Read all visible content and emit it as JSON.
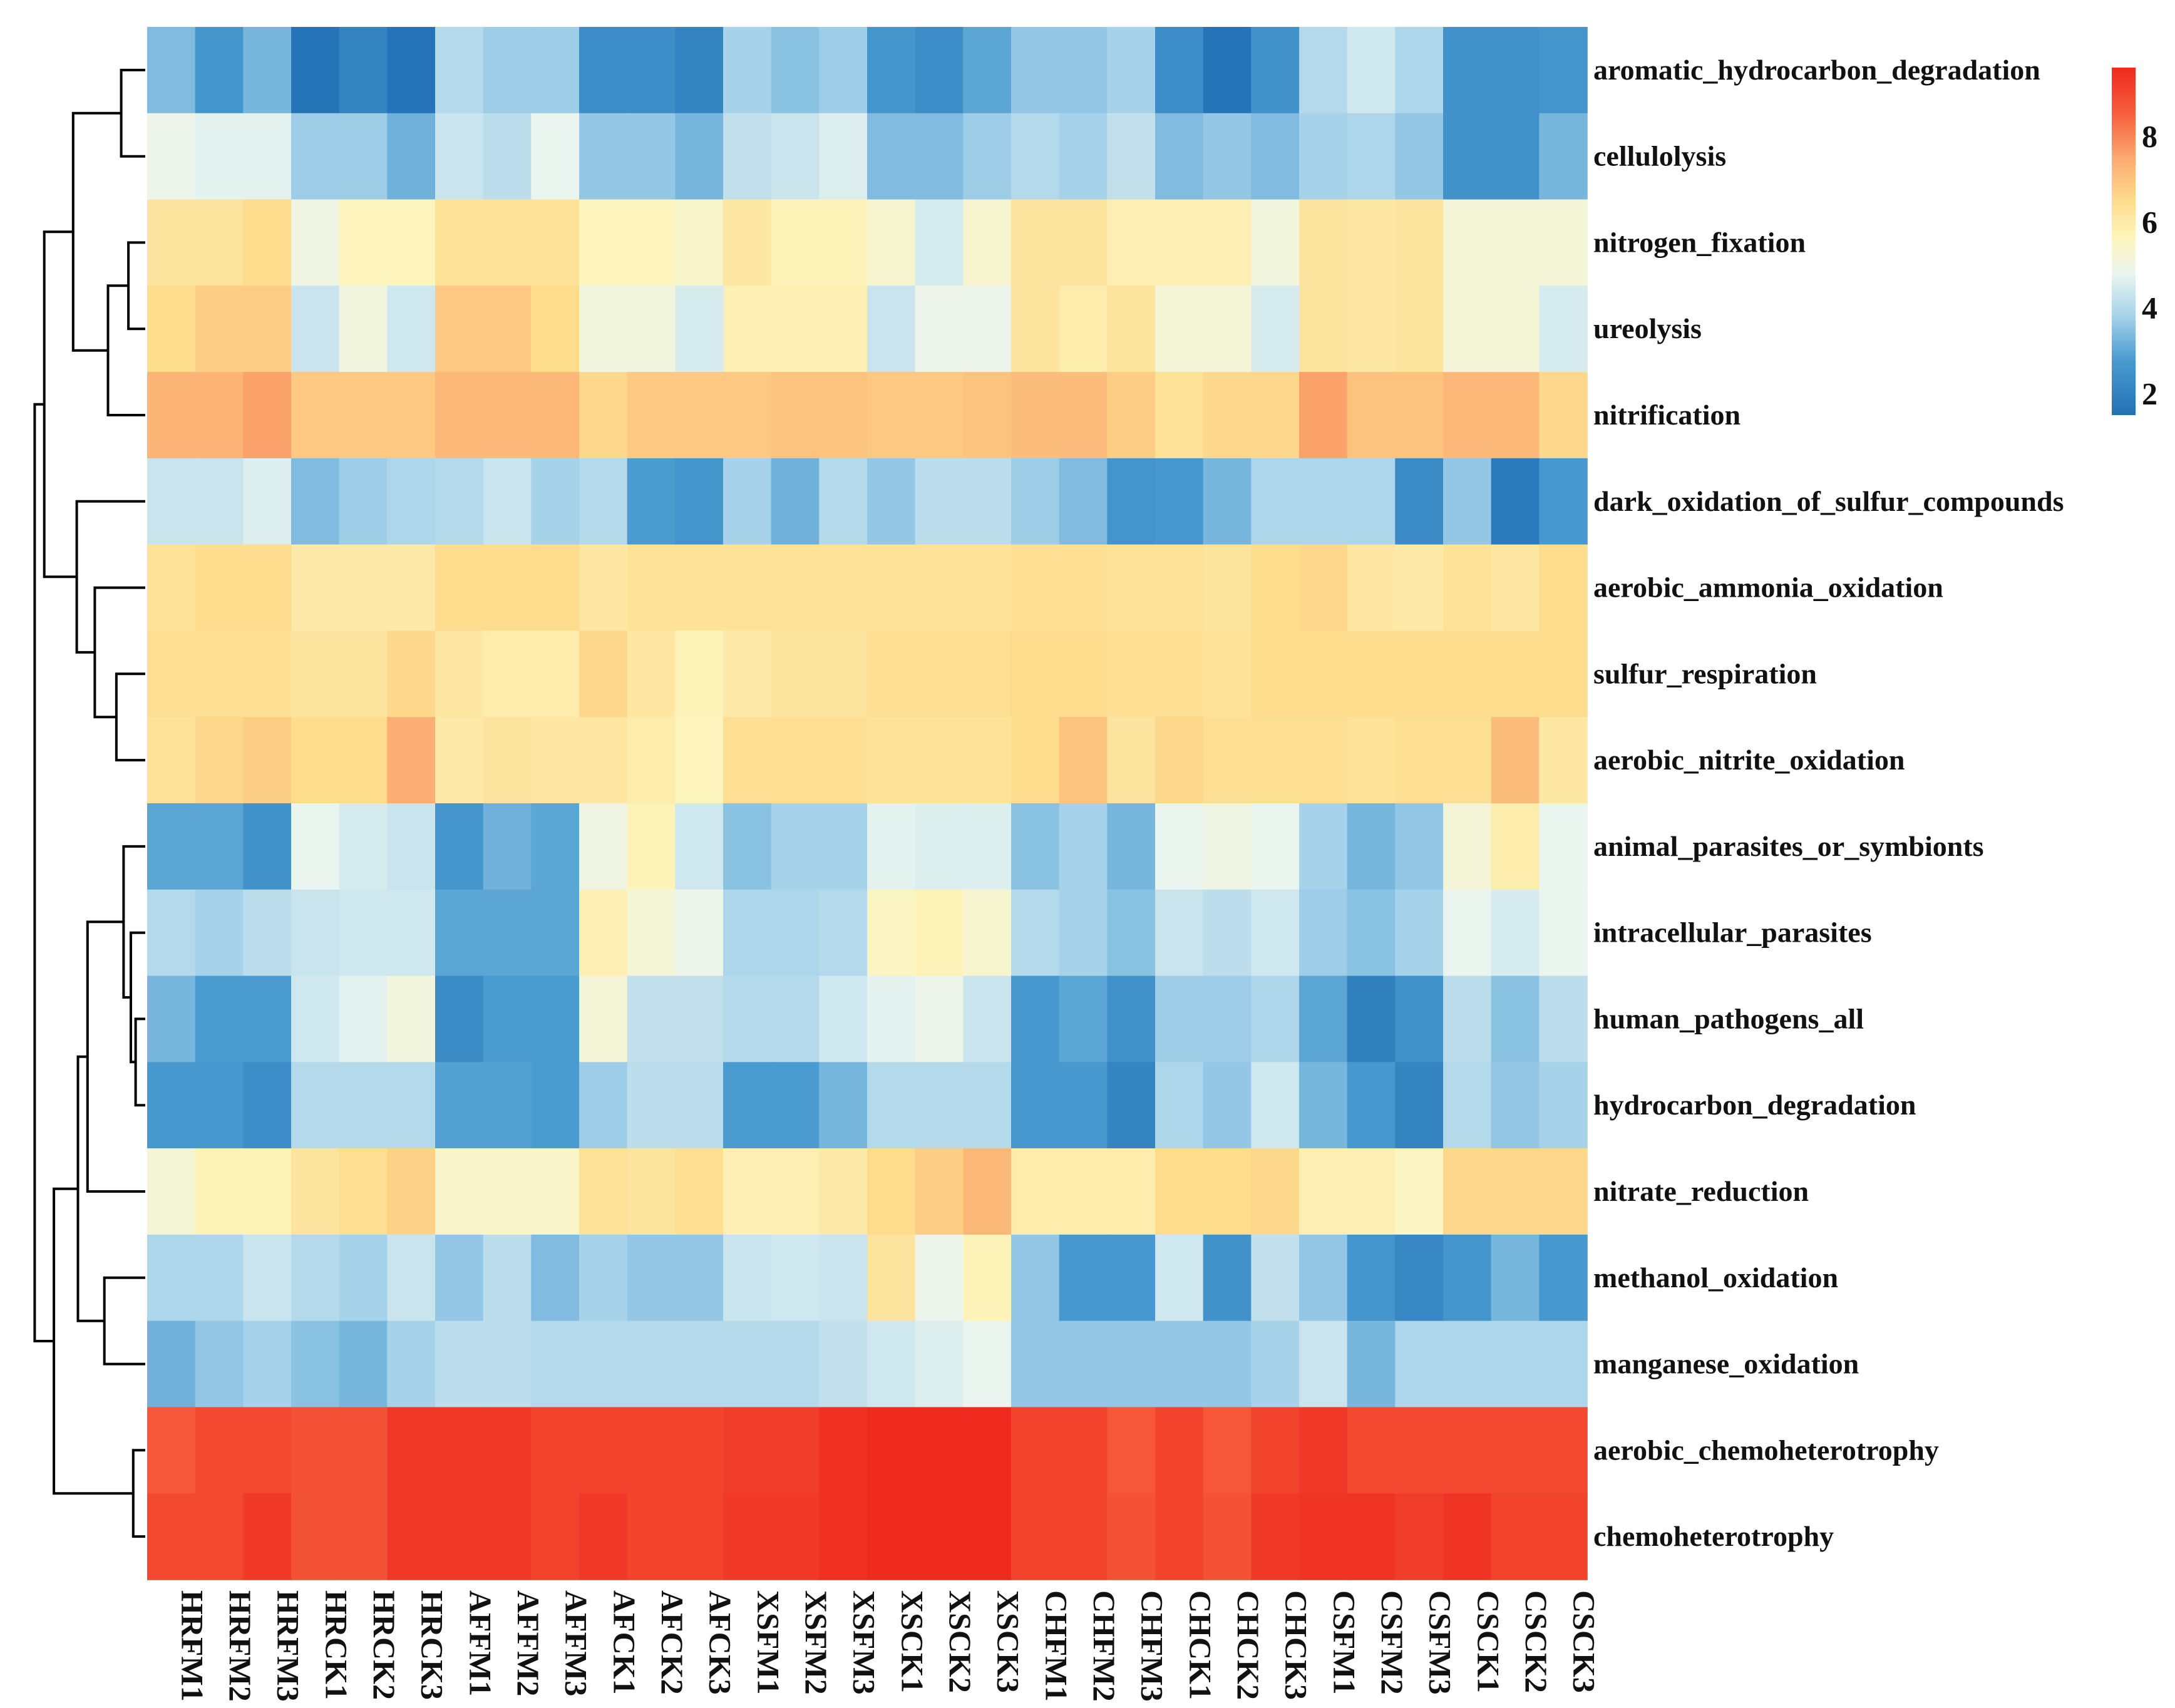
{
  "chart_data": {
    "type": "heatmap",
    "title": "",
    "xlabel": "",
    "ylabel": "",
    "columns": [
      "HRFM1",
      "HRFM2",
      "HRFM3",
      "HRCK1",
      "HRCK2",
      "HRCK3",
      "AFFM1",
      "AFFM2",
      "AFFM3",
      "AFCK1",
      "AFCK2",
      "AFCK3",
      "XSFM1",
      "XSFM2",
      "XSFM3",
      "XSCK1",
      "XSCK2",
      "XSCK3",
      "CHFM1",
      "CHFM2",
      "CHFM3",
      "CHCK1",
      "CHCK2",
      "CHCK3",
      "CSFM1",
      "CSFM2",
      "CSFM3",
      "CSCK1",
      "CSCK2",
      "CSCK3"
    ],
    "rows": [
      "aromatic_hydrocarbon_degradation",
      "cellulolysis",
      "nitrogen_fixation",
      "ureolysis",
      "nitrification",
      "dark_oxidation_of_sulfur_compounds",
      "aerobic_ammonia_oxidation",
      "sulfur_respiration",
      "aerobic_nitrite_oxidation",
      "animal_parasites_or_symbionts",
      "intracellular_parasites",
      "human_pathogens_all",
      "hydrocarbon_degradation",
      "nitrate_reduction",
      "methanol_oxidation",
      "manganese_oxidation",
      "aerobic_chemoheterotrophy",
      "chemoheterotrophy"
    ],
    "values": [
      [
        3.4,
        2.6,
        3.3,
        1.6,
        2.1,
        1.6,
        4.0,
        3.7,
        3.7,
        2.4,
        2.4,
        2.1,
        3.8,
        3.5,
        3.7,
        2.6,
        2.4,
        3.0,
        3.6,
        3.6,
        3.8,
        2.4,
        1.6,
        2.5,
        4.0,
        4.4,
        3.9,
        2.5,
        2.5,
        2.6
      ],
      [
        4.9,
        4.7,
        4.7,
        3.7,
        3.7,
        3.2,
        4.3,
        4.1,
        4.8,
        3.6,
        3.6,
        3.3,
        4.2,
        4.3,
        4.6,
        3.4,
        3.4,
        3.7,
        4.0,
        3.8,
        4.2,
        3.4,
        3.6,
        3.4,
        3.8,
        3.9,
        3.6,
        2.5,
        2.5,
        3.3
      ],
      [
        6.2,
        6.2,
        6.5,
        5.0,
        5.6,
        5.6,
        6.3,
        6.3,
        6.3,
        5.6,
        5.6,
        5.4,
        6.1,
        5.7,
        5.7,
        5.3,
        4.5,
        5.3,
        6.2,
        6.2,
        5.8,
        5.8,
        5.8,
        5.1,
        6.2,
        6.1,
        6.2,
        5.2,
        5.2,
        5.2
      ],
      [
        6.5,
        6.8,
        6.8,
        4.3,
        5.1,
        4.4,
        6.9,
        6.9,
        6.5,
        5.1,
        5.1,
        4.5,
        5.8,
        5.8,
        5.8,
        4.3,
        4.9,
        4.9,
        6.2,
        5.9,
        6.2,
        5.2,
        5.2,
        4.5,
        6.2,
        6.1,
        6.2,
        5.2,
        5.2,
        4.5
      ],
      [
        7.3,
        7.3,
        7.6,
        6.9,
        6.9,
        6.9,
        7.2,
        7.2,
        7.2,
        6.6,
        6.9,
        6.9,
        6.9,
        7.0,
        7.0,
        6.9,
        6.9,
        7.0,
        7.1,
        7.1,
        6.8,
        6.3,
        6.6,
        6.6,
        7.6,
        7.0,
        7.0,
        7.2,
        7.2,
        6.6
      ],
      [
        4.3,
        4.3,
        4.6,
        3.4,
        3.7,
        3.9,
        4.0,
        4.3,
        3.8,
        4.0,
        2.8,
        2.6,
        3.8,
        3.2,
        4.0,
        3.6,
        4.1,
        4.1,
        3.7,
        3.4,
        2.6,
        2.7,
        3.3,
        3.9,
        3.9,
        3.9,
        2.3,
        3.6,
        1.8,
        2.7
      ],
      [
        6.3,
        6.5,
        6.5,
        6.0,
        6.0,
        6.0,
        6.5,
        6.5,
        6.5,
        6.1,
        6.3,
        6.3,
        6.3,
        6.3,
        6.3,
        6.3,
        6.3,
        6.3,
        6.4,
        6.4,
        6.3,
        6.3,
        6.2,
        6.5,
        6.6,
        6.1,
        6.0,
        6.3,
        6.1,
        6.5
      ],
      [
        6.4,
        6.4,
        6.4,
        6.2,
        6.2,
        6.6,
        6.1,
        5.9,
        5.9,
        6.6,
        6.1,
        5.7,
        6.0,
        6.2,
        6.2,
        6.4,
        6.4,
        6.4,
        6.5,
        6.5,
        6.4,
        6.4,
        6.3,
        6.5,
        6.5,
        6.5,
        6.5,
        6.5,
        6.5,
        6.5
      ],
      [
        6.3,
        6.6,
        6.8,
        6.5,
        6.5,
        7.4,
        6.0,
        6.2,
        6.1,
        6.1,
        5.9,
        5.6,
        6.4,
        6.4,
        6.4,
        6.3,
        6.3,
        6.3,
        6.5,
        7.0,
        6.2,
        6.6,
        6.4,
        6.4,
        6.4,
        6.3,
        6.4,
        6.4,
        7.1,
        6.1
      ],
      [
        3.0,
        3.0,
        2.5,
        4.8,
        4.5,
        4.3,
        2.6,
        3.2,
        3.0,
        5.0,
        5.7,
        4.4,
        3.5,
        3.8,
        3.8,
        4.7,
        4.6,
        4.6,
        3.5,
        3.8,
        3.3,
        4.8,
        5.0,
        4.8,
        3.8,
        3.3,
        3.6,
        5.2,
        5.9,
        4.8
      ],
      [
        4.0,
        3.8,
        4.1,
        4.3,
        4.4,
        4.4,
        3.0,
        3.0,
        3.0,
        5.8,
        5.2,
        4.9,
        3.9,
        3.9,
        4.0,
        5.5,
        5.7,
        5.3,
        4.0,
        3.8,
        3.5,
        4.3,
        4.1,
        4.4,
        3.7,
        3.5,
        3.8,
        4.8,
        4.5,
        4.8
      ],
      [
        3.3,
        2.8,
        2.8,
        4.4,
        4.7,
        5.1,
        2.3,
        2.8,
        2.8,
        5.2,
        4.2,
        4.2,
        4.0,
        4.0,
        4.4,
        4.7,
        4.9,
        4.3,
        2.7,
        3.0,
        2.5,
        3.7,
        3.7,
        3.9,
        3.0,
        2.0,
        2.5,
        4.1,
        3.5,
        4.1
      ],
      [
        2.7,
        2.7,
        2.4,
        4.0,
        4.0,
        4.0,
        2.9,
        2.9,
        2.8,
        3.7,
        4.1,
        4.1,
        2.8,
        2.8,
        3.3,
        4.0,
        4.0,
        4.0,
        2.7,
        2.7,
        2.1,
        3.9,
        3.6,
        4.4,
        3.3,
        2.7,
        2.1,
        4.0,
        3.6,
        3.8
      ],
      [
        5.2,
        5.7,
        5.7,
        6.2,
        6.4,
        6.7,
        5.4,
        5.4,
        5.4,
        6.3,
        6.2,
        6.4,
        5.8,
        5.8,
        6.0,
        6.5,
        6.8,
        7.2,
        5.9,
        5.9,
        5.9,
        6.5,
        6.5,
        6.6,
        5.8,
        5.8,
        5.5,
        6.6,
        6.6,
        6.6
      ],
      [
        3.9,
        3.9,
        4.3,
        4.0,
        3.8,
        4.3,
        3.6,
        4.1,
        3.4,
        3.8,
        3.6,
        3.6,
        4.3,
        4.4,
        4.3,
        6.2,
        4.9,
        5.7,
        3.6,
        2.7,
        2.7,
        4.4,
        2.5,
        4.2,
        3.6,
        2.6,
        2.2,
        2.6,
        3.3,
        2.7
      ],
      [
        3.2,
        3.6,
        3.8,
        3.5,
        3.3,
        3.8,
        4.1,
        4.1,
        4.0,
        4.0,
        4.0,
        4.0,
        4.0,
        4.0,
        4.2,
        4.4,
        4.6,
        4.8,
        3.6,
        3.6,
        3.6,
        3.6,
        3.6,
        3.8,
        4.3,
        3.3,
        3.9,
        3.9,
        3.9,
        3.9
      ],
      [
        8.7,
        9.0,
        9.0,
        8.8,
        8.8,
        9.3,
        9.3,
        9.3,
        9.1,
        9.1,
        9.1,
        9.1,
        9.2,
        9.2,
        9.5,
        9.6,
        9.6,
        9.6,
        9.1,
        9.1,
        8.7,
        9.1,
        8.7,
        9.1,
        9.3,
        9.0,
        9.0,
        9.0,
        9.0,
        9.0
      ],
      [
        9.0,
        9.0,
        9.3,
        8.8,
        8.8,
        9.3,
        9.3,
        9.3,
        9.1,
        9.3,
        9.1,
        9.1,
        9.3,
        9.3,
        9.5,
        9.6,
        9.6,
        9.6,
        9.1,
        9.1,
        8.8,
        9.1,
        8.8,
        9.3,
        9.4,
        9.4,
        9.2,
        9.4,
        9.1,
        9.1
      ]
    ],
    "color_scale": {
      "ticks": [
        2,
        4,
        6,
        8
      ],
      "stops": [
        {
          "v": 1.5,
          "c": "#2171b5"
        },
        {
          "v": 2.8,
          "c": "#4a9bd0"
        },
        {
          "v": 3.8,
          "c": "#a6d2ea"
        },
        {
          "v": 4.8,
          "c": "#ebf5f0"
        },
        {
          "v": 5.6,
          "c": "#fdf5bd"
        },
        {
          "v": 6.5,
          "c": "#fddc8e"
        },
        {
          "v": 7.5,
          "c": "#fba970"
        },
        {
          "v": 8.5,
          "c": "#f6613e"
        },
        {
          "v": 9.6,
          "c": "#ee2a1f"
        }
      ]
    },
    "row_dendrogram": true,
    "legend_position": "right"
  }
}
